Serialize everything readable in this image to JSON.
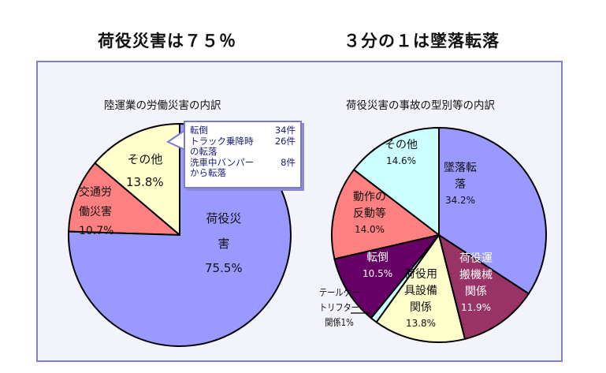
{
  "titles": {
    "left": "荷役災害は７５％",
    "right": "３分の１は墜落転落"
  },
  "colors": {
    "blue": "#9999ff",
    "salmon": "#ff8080",
    "yellow": "#ffffcc",
    "cyan": "#ccffff",
    "maroon": "#993366",
    "purple": "#660066",
    "frame": "#8080d0"
  },
  "chart_data": [
    {
      "type": "pie",
      "title": "陸運業の労働災害の内訳",
      "start": "top",
      "direction": "clockwise",
      "slices": [
        {
          "label": "荷役災害",
          "value": 75.5,
          "display": "75.5%",
          "color": "#9999ff"
        },
        {
          "label": "交通労働災害",
          "value": 10.7,
          "display": "10.7%",
          "color": "#ff8080"
        },
        {
          "label": "その他",
          "value": 13.8,
          "display": "13.8%",
          "color": "#ffffcc"
        }
      ]
    },
    {
      "type": "pie",
      "title": "荷役災害の事故の型別等の内訳",
      "start": "top",
      "direction": "clockwise",
      "slices": [
        {
          "label": "墜落転落",
          "value": 34.2,
          "display": "34.2%",
          "color": "#9999ff"
        },
        {
          "label": "荷役運搬機械関係",
          "value": 11.9,
          "display": "11.9%",
          "color": "#993366"
        },
        {
          "label": "荷役用具設備関係",
          "value": 13.8,
          "display": "13.8%",
          "color": "#ffffcc"
        },
        {
          "label": "テールゲートリフター関係",
          "value": 1,
          "display": "1%",
          "color": "#ccffff"
        },
        {
          "label": "転倒",
          "value": 10.5,
          "display": "10.5%",
          "color": "#660066"
        },
        {
          "label": "動作の反動等",
          "value": 14.0,
          "display": "14.0%",
          "color": "#ff8080"
        },
        {
          "label": "その他",
          "value": 14.6,
          "display": "14.6%",
          "color": "#ccffff"
        }
      ]
    }
  ],
  "labels": {
    "l_main": [
      "荷役災",
      "害"
    ],
    "l_traffic": [
      "交通労",
      "働災害"
    ],
    "l_other": "その他",
    "r_fall": [
      "墜落転",
      "落"
    ],
    "r_machine": [
      "荷役運",
      "搬機械",
      "関係"
    ],
    "r_tools": [
      "荷役用",
      "具設備",
      "関係"
    ],
    "r_tg": [
      "テールゲー",
      "トリフター",
      "関係1%"
    ],
    "r_trip": "転倒",
    "r_motion": [
      "動作の",
      "反動等"
    ],
    "r_other": "その他"
  },
  "callout": [
    {
      "text": "転倒",
      "count": "34件"
    },
    {
      "text": "トラック乗降時",
      "count": "26件"
    },
    {
      "text": "の転落",
      "count": ""
    },
    {
      "text": "洗車中バンパー",
      "count": "8件"
    },
    {
      "text": "から転落",
      "count": ""
    }
  ]
}
